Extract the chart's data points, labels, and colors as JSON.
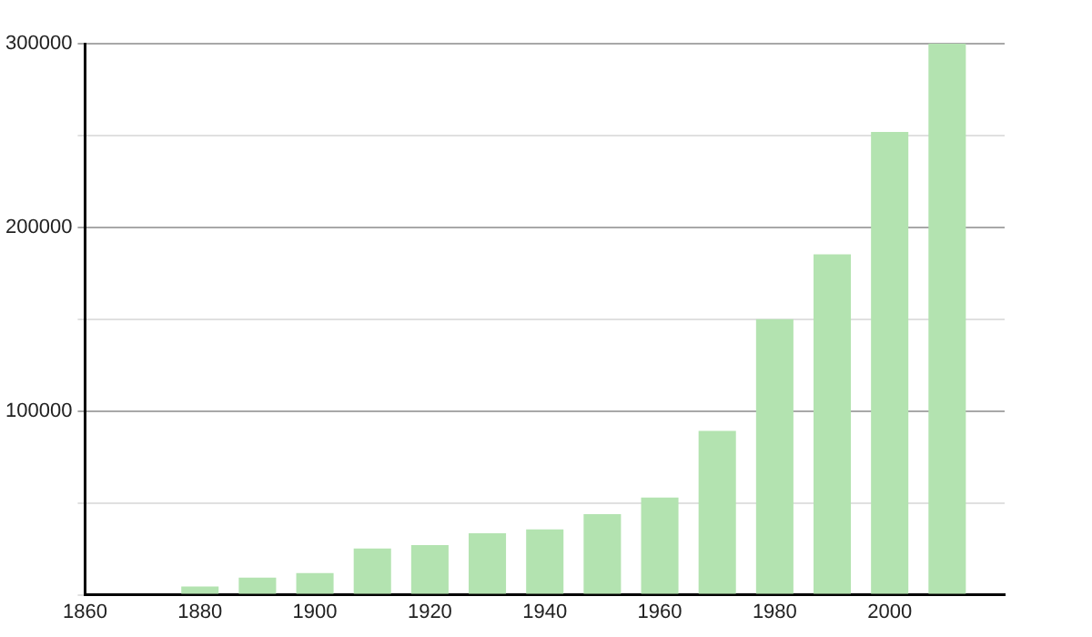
{
  "chart_data": {
    "type": "bar",
    "x": [
      1880,
      1890,
      1900,
      1910,
      1920,
      1930,
      1940,
      1950,
      1960,
      1970,
      1980,
      1990,
      2000,
      2010
    ],
    "values": [
      4500,
      9300,
      11800,
      25200,
      27000,
      33500,
      35600,
      43900,
      52900,
      89200,
      150000,
      185300,
      252000,
      300000
    ],
    "color": "#b3e3b0",
    "xlim": [
      1860,
      2020
    ],
    "xticks": [
      1860,
      1880,
      1900,
      1920,
      1940,
      1960,
      1980,
      2000
    ],
    "ylim": [
      0,
      300000
    ],
    "yticks": [
      {
        "value": 0,
        "label": null
      },
      {
        "value": 50000,
        "label": null
      },
      100000,
      {
        "value": 150000,
        "label": null
      },
      200000,
      {
        "value": 250000,
        "label": null
      },
      300000
    ],
    "grid": "y",
    "legend": false
  }
}
